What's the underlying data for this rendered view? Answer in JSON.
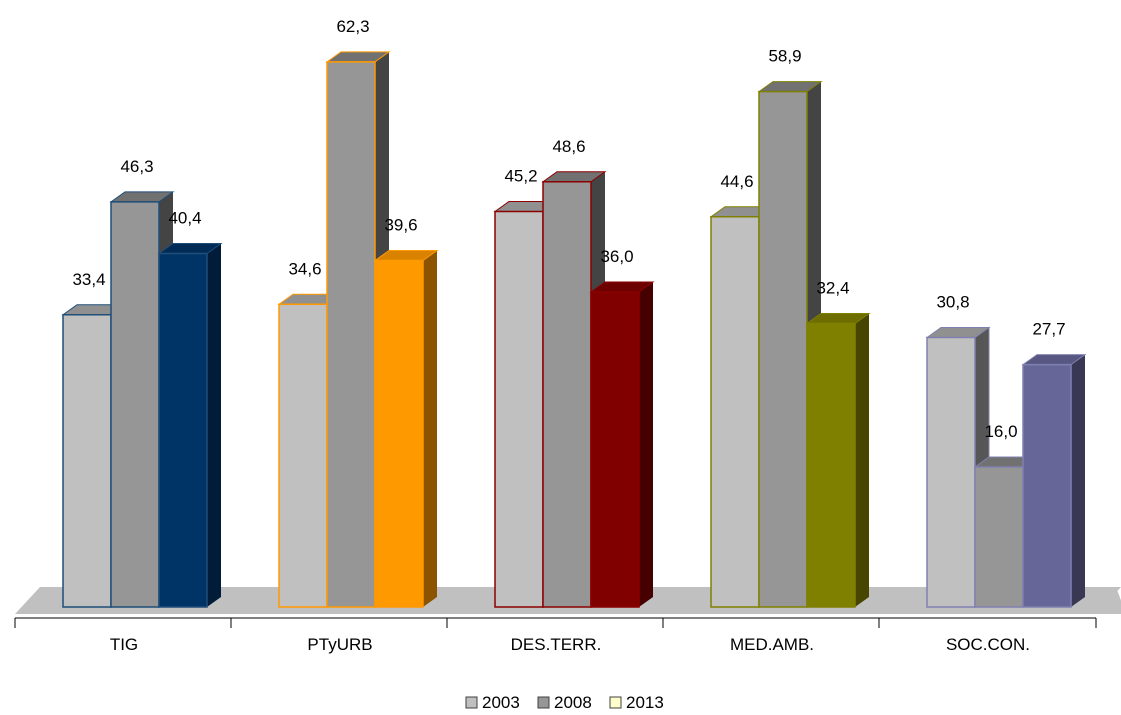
{
  "chart_data": {
    "type": "bar",
    "title": "",
    "xlabel": "",
    "ylabel": "",
    "categories": [
      "TIG",
      "PTyURB",
      "DES.TERR.",
      "MED.AMB.",
      "SOC.CON."
    ],
    "series": [
      {
        "name": "2003",
        "values": [
          33.4,
          34.6,
          45.2,
          44.6,
          30.8
        ],
        "labels": [
          "33,4",
          "34,6",
          "45,2",
          "44,6",
          "30,8"
        ]
      },
      {
        "name": "2008",
        "values": [
          46.3,
          62.3,
          48.6,
          58.9,
          16.0
        ],
        "labels": [
          "46,3",
          "62,3",
          "48,6",
          "58,9",
          "16,0"
        ]
      },
      {
        "name": "2013",
        "values": [
          40.4,
          39.6,
          36.0,
          32.4,
          27.7
        ],
        "labels": [
          "40,4",
          "39,6",
          "36,0",
          "32,4",
          "27,7"
        ]
      }
    ],
    "legend_position": "bottom",
    "grid": false,
    "style": "3d-column",
    "colors": {
      "series_2003_fill": "#c0c0c0",
      "series_2008_fill": "#969696",
      "series_2013_fill": [
        "#003366",
        "#ff9900",
        "#800000",
        "#808000",
        "#666699"
      ],
      "category_outline": [
        "#1f4e79",
        "#ff9900",
        "#8b0000",
        "#808000",
        "#8080b0"
      ],
      "floor": "#c0c0c0",
      "legend_2013_swatch": "#ffffcc"
    }
  }
}
